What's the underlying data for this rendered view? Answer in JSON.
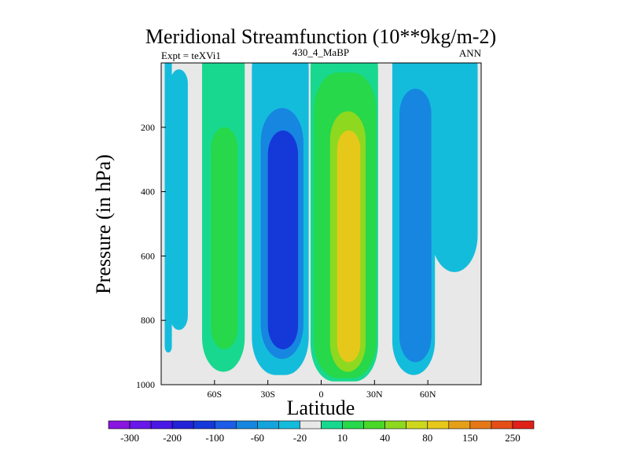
{
  "chart_data": {
    "type": "heatmap",
    "title": "Meridional Streamfunction (10**9kg/m-2)",
    "left_label": "Expt = teXVi1",
    "center_label": "430_4_MaBP",
    "right_label": "ANN",
    "xlabel": "Latitude",
    "ylabel": "Pressure (in hPa)",
    "xlim": [
      -90,
      90
    ],
    "ylim": [
      1000,
      0
    ],
    "x_ticks": [
      {
        "value": -60,
        "label": "60S"
      },
      {
        "value": -30,
        "label": "30S"
      },
      {
        "value": 0,
        "label": "0"
      },
      {
        "value": 30,
        "label": "30N"
      },
      {
        "value": 60,
        "label": "60N"
      }
    ],
    "y_ticks": [
      {
        "value": 200,
        "label": "200"
      },
      {
        "value": 400,
        "label": "400"
      },
      {
        "value": 600,
        "label": "600"
      },
      {
        "value": 800,
        "label": "800"
      },
      {
        "value": 1000,
        "label": "1000"
      }
    ],
    "colorbar": {
      "colors": [
        "#8a17e0",
        "#6818e8",
        "#4a18e6",
        "#2222d8",
        "#1538d8",
        "#1c5ce6",
        "#1686e0",
        "#14a4dc",
        "#14bcdc",
        "#e8e8e8",
        "#18d890",
        "#26d84a",
        "#4ad828",
        "#8ed820",
        "#cdd81c",
        "#e6c81a",
        "#e6a018",
        "#e67818",
        "#e64e18",
        "#e02018"
      ],
      "labels": [
        "-300",
        "-200",
        "-100",
        "-60",
        "-20",
        "10",
        "40",
        "80",
        "150",
        "250"
      ]
    },
    "regions": [
      {
        "name": "sh-polar-cell",
        "level": -20,
        "lat0": -88,
        "lat1": -84,
        "p_top": 0,
        "p_bot": 900
      },
      {
        "name": "sh-polar-cell-main",
        "level": -20,
        "lat0": -85,
        "lat1": -75,
        "p_top": 20,
        "p_bot": 830
      },
      {
        "name": "sh-ferrel-cell",
        "level": 10,
        "lat0": -67,
        "lat1": -43,
        "p_top": 0,
        "p_bot": 960
      },
      {
        "name": "sh-ferrel-core",
        "level": 40,
        "lat0": -62,
        "lat1": -47,
        "p_top": 200,
        "p_bot": 890
      },
      {
        "name": "sh-hadley-outer",
        "level": -20,
        "lat0": -39,
        "lat1": -7,
        "p_top": 0,
        "p_bot": 970
      },
      {
        "name": "sh-hadley-60",
        "level": -60,
        "lat0": -34,
        "lat1": -10,
        "p_top": 140,
        "p_bot": 920
      },
      {
        "name": "sh-hadley-100",
        "level": -100,
        "lat0": -30,
        "lat1": -13,
        "p_top": 210,
        "p_bot": 890
      },
      {
        "name": "sh-hadley-core",
        "level": -100,
        "lat0": -26,
        "lat1": -16,
        "p_top": 280,
        "p_bot": 840
      },
      {
        "name": "nh-hadley-outer",
        "level": 10,
        "lat0": -6,
        "lat1": 32,
        "p_top": 0,
        "p_bot": 990
      },
      {
        "name": "nh-hadley-40",
        "level": 40,
        "lat0": -4,
        "lat1": 31,
        "p_top": 30,
        "p_bot": 980
      },
      {
        "name": "nh-hadley-80",
        "level": 80,
        "lat0": 5,
        "lat1": 25,
        "p_top": 150,
        "p_bot": 960
      },
      {
        "name": "nh-hadley-150",
        "level": 150,
        "lat0": 9,
        "lat1": 22,
        "p_top": 210,
        "p_bot": 930
      },
      {
        "name": "nh-hadley-core",
        "level": 150,
        "lat0": 12,
        "lat1": 20,
        "p_top": 280,
        "p_bot": 880
      },
      {
        "name": "nh-ferrel-cell",
        "level": -20,
        "lat0": 40,
        "lat1": 64,
        "p_top": 0,
        "p_bot": 970
      },
      {
        "name": "nh-ferrel-core",
        "level": -60,
        "lat0": 44,
        "lat1": 62,
        "p_top": 80,
        "p_bot": 930
      },
      {
        "name": "nh-polar-cell",
        "level": -20,
        "lat0": 62,
        "lat1": 88,
        "p_top": 0,
        "p_bot": 650
      }
    ]
  }
}
